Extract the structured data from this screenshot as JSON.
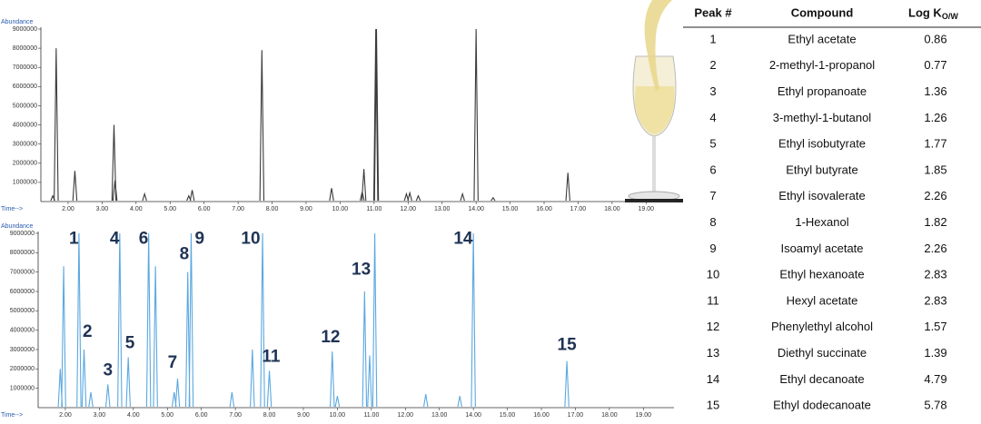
{
  "chart_data": [
    {
      "type": "chromatogram",
      "y_label": "Abundance",
      "x_label": "Time-->",
      "color": "#3a3a3a",
      "xlim": [
        1.2,
        19.9
      ],
      "ylim": [
        0,
        9000000
      ],
      "xticks": [
        {
          "value": 2,
          "label": "2.00"
        },
        {
          "value": 3,
          "label": "3.00"
        },
        {
          "value": 4,
          "label": "4.00"
        },
        {
          "value": 5,
          "label": "5.00"
        },
        {
          "value": 6,
          "label": "6.00"
        },
        {
          "value": 7,
          "label": "7.00"
        },
        {
          "value": 8,
          "label": "8.00"
        },
        {
          "value": 9,
          "label": "9.00"
        },
        {
          "value": 10,
          "label": "10.00"
        },
        {
          "value": 11,
          "label": "11.00"
        },
        {
          "value": 12,
          "label": "12.00"
        },
        {
          "value": 13,
          "label": "13.00"
        },
        {
          "value": 14,
          "label": "14.00"
        },
        {
          "value": 15,
          "label": "15.00"
        },
        {
          "value": 16,
          "label": "16.00"
        },
        {
          "value": 17,
          "label": "17.00"
        },
        {
          "value": 18,
          "label": "18.00"
        },
        {
          "value": 19,
          "label": "19.00"
        }
      ],
      "yticks": [
        1000000,
        2000000,
        3000000,
        4000000,
        5000000,
        6000000,
        7000000,
        8000000,
        9000000
      ],
      "x": [
        1.55,
        1.65,
        2.2,
        3.35,
        3.38,
        4.25,
        5.55,
        5.65,
        7.7,
        9.75,
        10.65,
        10.7,
        11.05,
        11.07,
        11.95,
        12.05,
        12.3,
        13.6,
        14.0,
        14.5,
        16.7
      ],
      "values": [
        300000,
        8000000,
        1600000,
        4000000,
        1100000,
        400000,
        300000,
        600000,
        7900000,
        700000,
        500000,
        1700000,
        9000000,
        9000000,
        400000,
        450000,
        300000,
        400000,
        9000000,
        200000,
        1500000
      ]
    },
    {
      "type": "chromatogram",
      "y_label": "Abundance",
      "x_label": "Time-->",
      "color": "#5ba8e0",
      "xlim": [
        1.2,
        19.9
      ],
      "ylim": [
        0,
        9000000
      ],
      "xticks": [
        {
          "value": 2,
          "label": "2.00"
        },
        {
          "value": 3,
          "label": "3.00"
        },
        {
          "value": 4,
          "label": "4.00"
        },
        {
          "value": 5,
          "label": "5.00"
        },
        {
          "value": 6,
          "label": "6.00"
        },
        {
          "value": 7,
          "label": "7.00"
        },
        {
          "value": 8,
          "label": "8.00"
        },
        {
          "value": 9,
          "label": "9.00"
        },
        {
          "value": 10,
          "label": "10.00"
        },
        {
          "value": 11,
          "label": "11.00"
        },
        {
          "value": 12,
          "label": "12.00"
        },
        {
          "value": 13,
          "label": "13.00"
        },
        {
          "value": 14,
          "label": "14.00"
        },
        {
          "value": 15,
          "label": "15.00"
        },
        {
          "value": 16,
          "label": "16.00"
        },
        {
          "value": 17,
          "label": "17.00"
        },
        {
          "value": 18,
          "label": "18.00"
        },
        {
          "value": 19,
          "label": "19.00"
        }
      ],
      "yticks": [
        1000000,
        2000000,
        3000000,
        4000000,
        5000000,
        6000000,
        7000000,
        8000000,
        9000000
      ],
      "x": [
        1.85,
        1.95,
        2.4,
        2.55,
        2.75,
        3.25,
        3.6,
        3.85,
        4.45,
        4.65,
        5.2,
        5.3,
        5.6,
        5.7,
        6.9,
        7.5,
        7.8,
        8.0,
        9.85,
        10.0,
        10.8,
        10.95,
        11.1,
        12.6,
        13.6,
        14.0,
        16.75
      ],
      "values": [
        2000000,
        7300000,
        9000000,
        3000000,
        800000,
        1200000,
        9000000,
        2600000,
        9000000,
        7300000,
        800000,
        1500000,
        7000000,
        9000000,
        800000,
        3000000,
        9000000,
        1900000,
        2900000,
        600000,
        6000000,
        2700000,
        9000000,
        700000,
        600000,
        9000000,
        2400000
      ],
      "annotations": [
        {
          "text": "1",
          "x": 2.25,
          "y": 8700000
        },
        {
          "text": "2",
          "x": 2.65,
          "y": 3900000
        },
        {
          "text": "3",
          "x": 3.25,
          "y": 1900000
        },
        {
          "text": "4",
          "x": 3.45,
          "y": 8700000
        },
        {
          "text": "5",
          "x": 3.9,
          "y": 3300000
        },
        {
          "text": "6",
          "x": 4.3,
          "y": 8700000
        },
        {
          "text": "7",
          "x": 5.15,
          "y": 2300000
        },
        {
          "text": "8",
          "x": 5.5,
          "y": 7900000
        },
        {
          "text": "9",
          "x": 5.95,
          "y": 8700000
        },
        {
          "text": "10",
          "x": 7.45,
          "y": 8700000
        },
        {
          "text": "11",
          "x": 8.05,
          "y": 2600000
        },
        {
          "text": "12",
          "x": 9.8,
          "y": 3600000
        },
        {
          "text": "13",
          "x": 10.7,
          "y": 7100000
        },
        {
          "text": "14",
          "x": 13.7,
          "y": 8700000
        },
        {
          "text": "15",
          "x": 16.75,
          "y": 3200000
        }
      ]
    }
  ],
  "table": {
    "header": [
      "Peak #",
      "Compound",
      "Log K"
    ],
    "header_subscript": "O/W",
    "rows": [
      [
        "1",
        "Ethyl acetate",
        "0.86"
      ],
      [
        "2",
        "2-methyl-1-propanol",
        "0.77"
      ],
      [
        "3",
        "Ethyl propanoate",
        "1.36"
      ],
      [
        "4",
        "3-methyl-1-butanol",
        "1.26"
      ],
      [
        "5",
        "Ethyl isobutyrate",
        "1.77"
      ],
      [
        "6",
        "Ethyl butyrate",
        "1.85"
      ],
      [
        "7",
        "Ethyl isovalerate",
        "2.26"
      ],
      [
        "8",
        "1-Hexanol",
        "1.82"
      ],
      [
        "9",
        "Isoamyl acetate",
        "2.26"
      ],
      [
        "10",
        "Ethyl hexanoate",
        "2.83"
      ],
      [
        "11",
        "Hexyl acetate",
        "2.83"
      ],
      [
        "12",
        "Phenylethyl alcohol",
        "1.57"
      ],
      [
        "13",
        "Diethyl succinate",
        "1.39"
      ],
      [
        "14",
        "Ethyl decanoate",
        "4.79"
      ],
      [
        "15",
        "Ethyl dodecanoate",
        "5.78"
      ]
    ]
  }
}
